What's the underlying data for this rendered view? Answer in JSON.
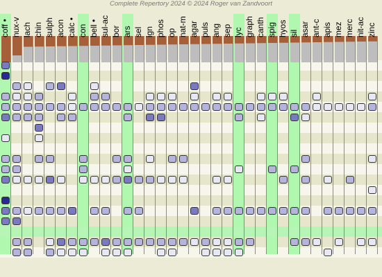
{
  "copyright": "Complete Repertory 2024 © 2024 Roger van Zandvoort",
  "colors": {
    "background": "#ebebd6",
    "row_light": "#f6f6ec",
    "row_dark": "#e6e6cc",
    "highlight_row": "#b6f5b6",
    "highlight_col": "#b0f8b0",
    "bar_top": "#a5603a",
    "bar_bottom": "#bdbdbd",
    "grade_colors": [
      "#e8e8f4",
      "#b4b4dc",
      "#7a7ac2",
      "#2a2a94"
    ]
  },
  "remedies": [
    {
      "label": "coff •",
      "highlight": true
    },
    {
      "label": "nux-v",
      "highlight": false
    },
    {
      "label": "lach",
      "highlight": false
    },
    {
      "label": "chin",
      "highlight": false
    },
    {
      "label": "sulph",
      "highlight": false
    },
    {
      "label": "acon",
      "highlight": false
    },
    {
      "label": "calc •",
      "highlight": false
    },
    {
      "label": "con",
      "highlight": true
    },
    {
      "label": "bell •",
      "highlight": false
    },
    {
      "label": "sul-ac",
      "highlight": false
    },
    {
      "label": "bor",
      "highlight": false
    },
    {
      "label": "ars",
      "highlight": true
    },
    {
      "label": "sel",
      "highlight": false
    },
    {
      "label": "ign",
      "highlight": false
    },
    {
      "label": "phos",
      "highlight": false
    },
    {
      "label": "op",
      "highlight": false
    },
    {
      "label": "nat-m",
      "highlight": false
    },
    {
      "label": "agar",
      "highlight": false
    },
    {
      "label": "puls",
      "highlight": false
    },
    {
      "label": "ang",
      "highlight": false
    },
    {
      "label": "sep",
      "highlight": false
    },
    {
      "label": "lyc",
      "highlight": true
    },
    {
      "label": "graph",
      "highlight": false
    },
    {
      "label": "canth",
      "highlight": false
    },
    {
      "label": "spig",
      "highlight": true
    },
    {
      "label": "hyos",
      "highlight": false
    },
    {
      "label": "sil",
      "highlight": true
    },
    {
      "label": "asar",
      "highlight": false
    },
    {
      "label": "ant-c",
      "highlight": false
    },
    {
      "label": "apis",
      "highlight": false
    },
    {
      "label": "mez",
      "highlight": false
    },
    {
      "label": "merc",
      "highlight": false
    },
    {
      "label": "nit-ac",
      "highlight": false
    },
    {
      "label": "zinc",
      "highlight": false
    }
  ],
  "highlighted_row": 16,
  "grid": [
    "4.......................................",
    "0.3..............3...........................",
    "4.......................................",
    "3.1.1.2.1.2.1.2.1.2.......................",
    "",
    "",
    "",
    "",
    "",
    "",
    "",
    "",
    "",
    "",
    "",
    "",
    "",
    "",
    "",
    "",
    "",
    ""
  ]
}
